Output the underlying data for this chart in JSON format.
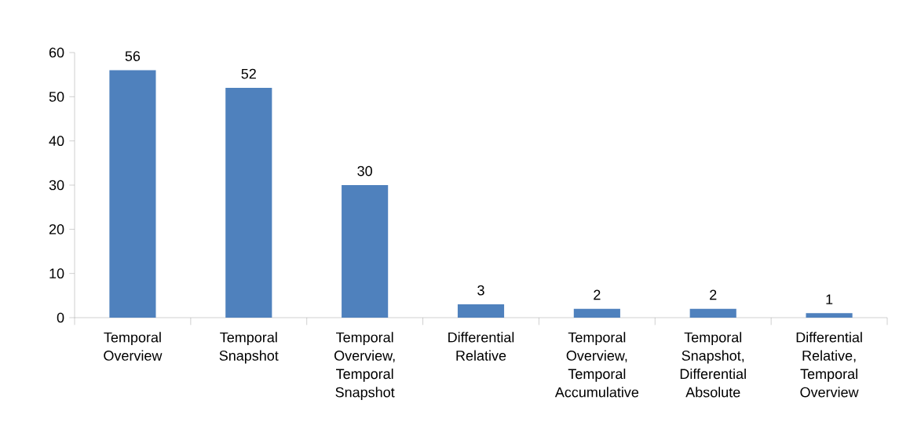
{
  "chart_data": {
    "type": "bar",
    "categories": [
      "Temporal Overview",
      "Temporal Snapshot",
      "Temporal Overview, Temporal Snapshot",
      "Differential Relative",
      "Temporal Overview, Temporal Accumulative",
      "Temporal Snapshot, Differential Absolute",
      "Differential Relative, Temporal Overview"
    ],
    "values": [
      56,
      52,
      30,
      3,
      2,
      2,
      1
    ],
    "color": "#4f81bd",
    "ylim": [
      0,
      60
    ],
    "yticks": [
      0,
      10,
      20,
      30,
      40,
      50,
      60
    ],
    "data_labels": true,
    "grid": false
  }
}
